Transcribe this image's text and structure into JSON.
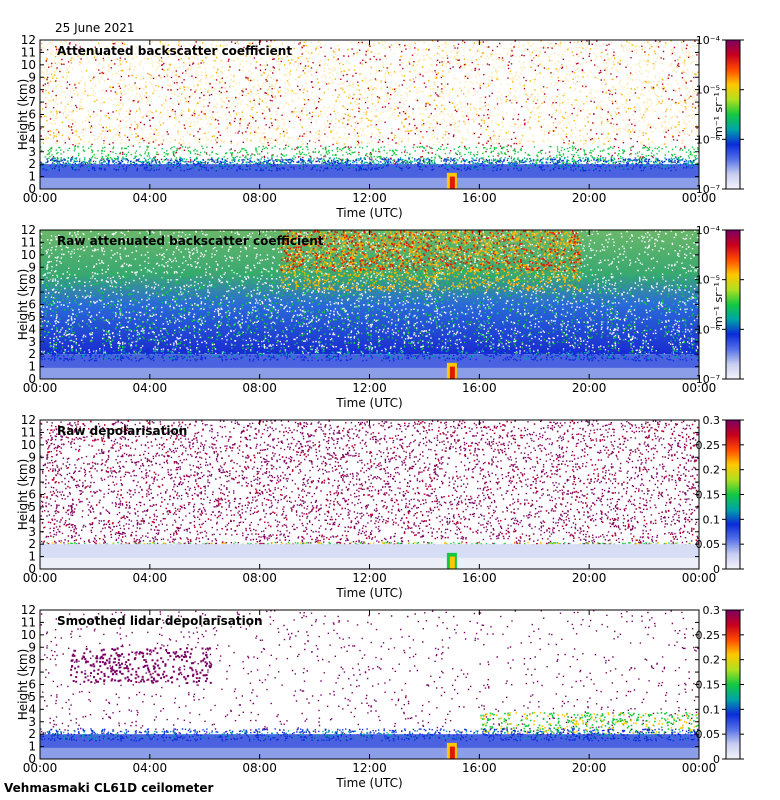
{
  "date": "25 June 2021",
  "site_label": "Vehmasmaki CL61D ceilometer",
  "chart_data": [
    {
      "type": "heatmap",
      "title": "Attenuated backscatter coefficient",
      "xlabel": "Time (UTC)",
      "ylabel": "Height (km)",
      "x_ticks": [
        "00:00",
        "04:00",
        "08:00",
        "12:00",
        "16:00",
        "20:00",
        "00:00"
      ],
      "y_ticks": [
        "0",
        "1",
        "2",
        "3",
        "4",
        "5",
        "6",
        "7",
        "8",
        "9",
        "10",
        "11",
        "12"
      ],
      "ylim": [
        0,
        12
      ],
      "colorbar": {
        "scale": "log",
        "unit": "m⁻¹ sr⁻¹",
        "ticks": [
          "10⁻⁴",
          "10⁻⁵",
          "10⁻⁶",
          "10⁻⁷"
        ],
        "colormap": [
          "#7a0063",
          "#c8001e",
          "#ff4b00",
          "#ffc800",
          "#b0e020",
          "#14c840",
          "#00a4a8",
          "#0a2cd8",
          "#5470e8",
          "#c8cdf0",
          "#f4f4fb"
        ]
      }
    },
    {
      "type": "heatmap",
      "title": "Raw attenuated backscatter coefficient",
      "xlabel": "Time (UTC)",
      "ylabel": "Height (km)",
      "x_ticks": [
        "00:00",
        "04:00",
        "08:00",
        "12:00",
        "16:00",
        "20:00",
        "00:00"
      ],
      "y_ticks": [
        "0",
        "1",
        "2",
        "3",
        "4",
        "5",
        "6",
        "7",
        "8",
        "9",
        "10",
        "11",
        "12"
      ],
      "ylim": [
        0,
        12
      ],
      "colorbar": {
        "scale": "log",
        "unit": "m⁻¹ sr⁻¹",
        "ticks": [
          "10⁻⁴",
          "10⁻⁵",
          "10⁻⁶",
          "10⁻⁷"
        ],
        "colormap": [
          "#7a0063",
          "#c8001e",
          "#ff4b00",
          "#ffc800",
          "#b0e020",
          "#14c840",
          "#00a4a8",
          "#0a2cd8",
          "#5470e8",
          "#c8cdf0",
          "#f4f4fb"
        ]
      }
    },
    {
      "type": "heatmap",
      "title": "Raw depolarisation",
      "xlabel": "Time (UTC)",
      "ylabel": "Height (km)",
      "x_ticks": [
        "00:00",
        "04:00",
        "08:00",
        "12:00",
        "16:00",
        "20:00",
        "00:00"
      ],
      "y_ticks": [
        "0",
        "1",
        "2",
        "3",
        "4",
        "5",
        "6",
        "7",
        "8",
        "9",
        "10",
        "11",
        "12"
      ],
      "ylim": [
        0,
        12
      ],
      "colorbar": {
        "scale": "linear",
        "ticks": [
          "0.3",
          "0.25",
          "0.2",
          "0.15",
          "0.1",
          "0.05",
          "0"
        ],
        "colormap": [
          "#7a0063",
          "#c8001e",
          "#ff4b00",
          "#ffc800",
          "#b0e020",
          "#14c840",
          "#00a4a8",
          "#0a2cd8",
          "#5470e8",
          "#c8cdf0",
          "#f4f4fb"
        ]
      }
    },
    {
      "type": "heatmap",
      "title": "Smoothed lidar depolarisation",
      "xlabel": "Time (UTC)",
      "ylabel": "Height (km)",
      "x_ticks": [
        "00:00",
        "04:00",
        "08:00",
        "12:00",
        "16:00",
        "20:00",
        "00:00"
      ],
      "y_ticks": [
        "0",
        "1",
        "2",
        "3",
        "4",
        "5",
        "6",
        "7",
        "8",
        "9",
        "10",
        "11",
        "12"
      ],
      "ylim": [
        0,
        12
      ],
      "colorbar": {
        "scale": "linear",
        "ticks": [
          "0.3",
          "0.25",
          "0.2",
          "0.15",
          "0.1",
          "0.05",
          "0"
        ],
        "colormap": [
          "#7a0063",
          "#c8001e",
          "#ff4b00",
          "#ffc800",
          "#b0e020",
          "#14c840",
          "#00a4a8",
          "#0a2cd8",
          "#5470e8",
          "#c8cdf0",
          "#f4f4fb"
        ]
      }
    }
  ]
}
